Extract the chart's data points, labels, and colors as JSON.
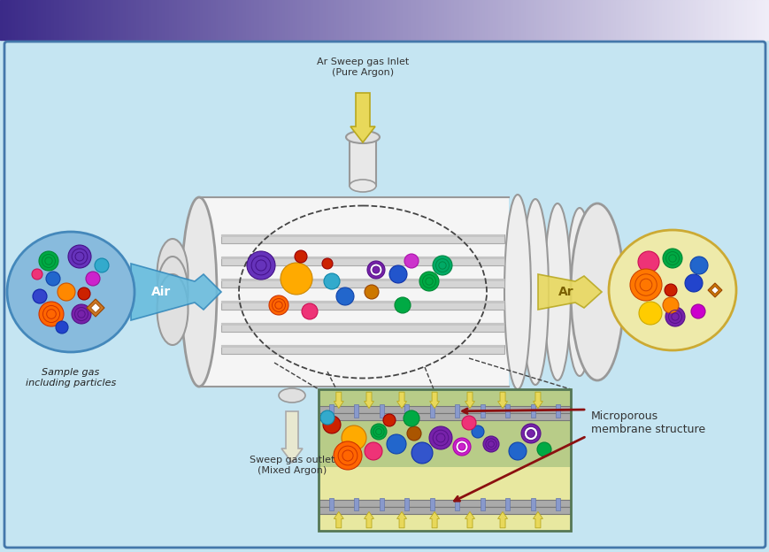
{
  "bg_color": "#c5e5f2",
  "header_gradient_left": "#3b2a88",
  "header_gradient_right": "#f0eef8",
  "border_color": "#4477aa",
  "arrow_air_label": "Air",
  "arrow_ar_label": "Ar",
  "sweep_inlet_label": "Ar Sweep gas Inlet\n(Pure Argon)",
  "sweep_outlet_label": "Sweep gas outlet\n(Mixed Argon)",
  "sample_gas_label": "Sample gas\nincluding particles",
  "microporous_label": "Microporous\nmembrane structure",
  "inlet_arrow_color": "#e8d85a",
  "inlet_arrow_edge": "#b8a820",
  "air_arrow_color": "#66bbdd",
  "air_arrow_edge": "#3388bb",
  "ar_arrow_color": "#e8d85a",
  "ar_arrow_edge": "#b8a820",
  "left_circle_color": "#88bbdd",
  "left_circle_edge": "#4488bb",
  "right_circle_color": "#eeeaaa",
  "right_circle_edge": "#ccaa33",
  "inset_bg_top": "#b8cc88",
  "inset_bg_bottom": "#e8e8a0",
  "inset_border": "#557755",
  "membrane_band_color": "#aaaaaa",
  "membrane_band_edge": "#777777",
  "dashed_line_color": "#444444",
  "tube_body_color": "#eeeeee",
  "tube_edge_color": "#999999",
  "tube_inner_color": "#dddddd",
  "tube_shading_color": "#cccccc"
}
